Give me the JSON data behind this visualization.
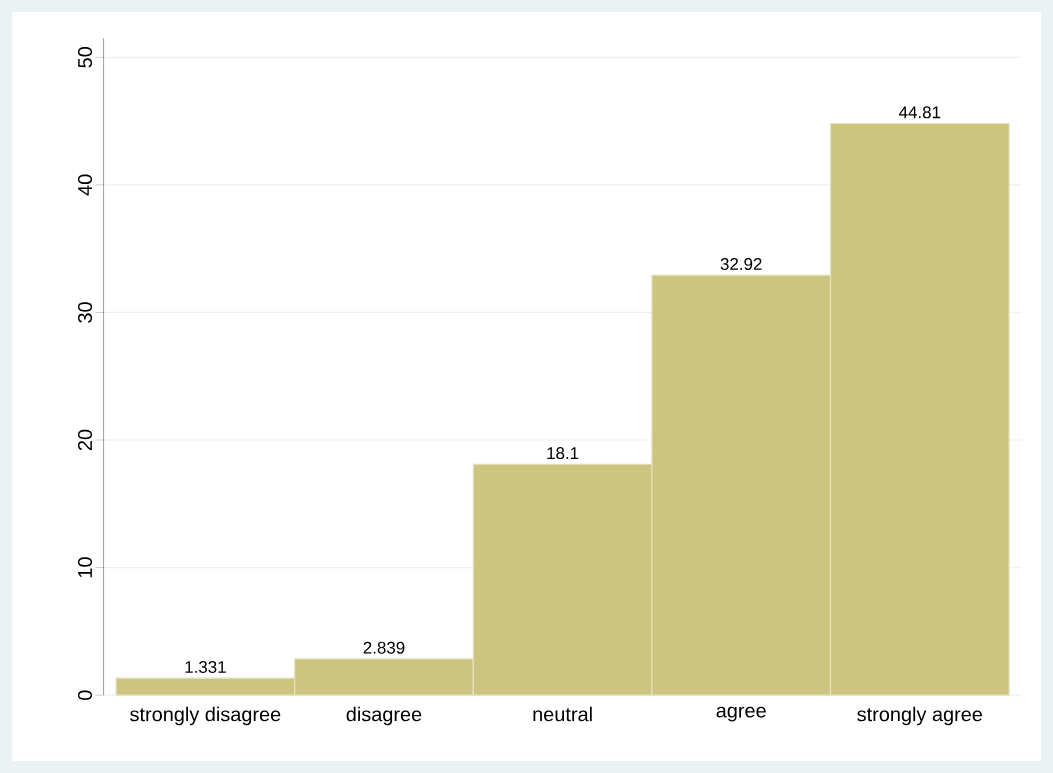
{
  "chart_data": {
    "type": "bar",
    "categories": [
      "strongly disagree",
      "disagree",
      "neutral",
      "agree",
      "strongly agree"
    ],
    "values": [
      1.331,
      2.839,
      18.1,
      32.92,
      44.81
    ],
    "color": "#cdc47f",
    "ylim": [
      0,
      51.5
    ],
    "yticks": [
      0,
      10,
      20,
      30,
      40,
      50
    ],
    "grid": "y",
    "data_labels": true
  }
}
